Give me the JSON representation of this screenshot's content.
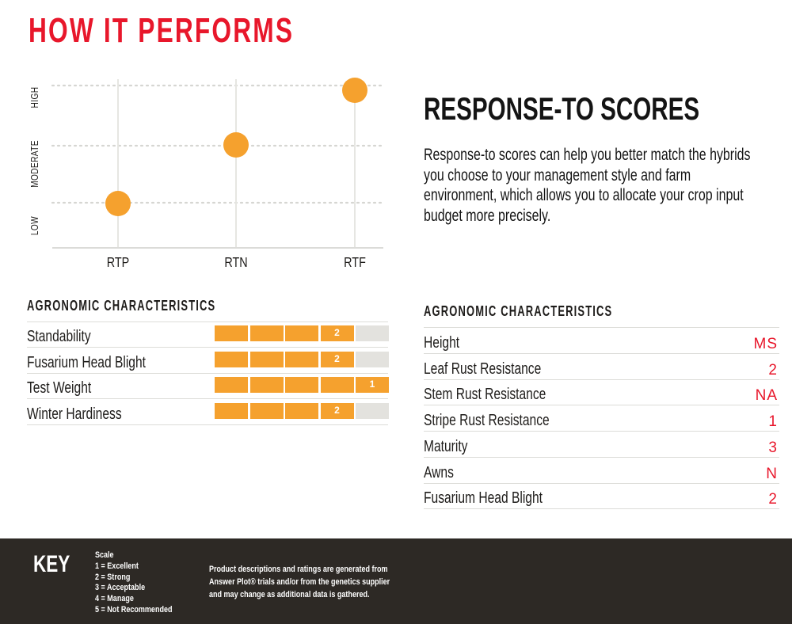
{
  "page_title": "HOW IT PERFORMS",
  "chart_data": {
    "type": "scatter",
    "categories": [
      "RTP",
      "RTN",
      "RTF"
    ],
    "y_levels": [
      "LOW",
      "MODERATE",
      "HIGH"
    ],
    "series": [
      {
        "values": [
          "LOW",
          "MODERATE",
          "HIGH"
        ]
      }
    ],
    "grid": true,
    "point_color": "#f5a12e"
  },
  "response": {
    "heading": "RESPONSE-TO SCORES",
    "body": "Response-to scores can help you better match the hybrids you choose to your management style and farm environment, which allows you to allocate your crop input budget more precisely."
  },
  "left_agronomic": {
    "title": "AGRONOMIC CHARACTERISTICS",
    "scale_max": 5,
    "rows": [
      {
        "label": "Standability",
        "rating": 2
      },
      {
        "label": "Fusarium Head Blight",
        "rating": 2
      },
      {
        "label": "Test Weight",
        "rating": 1
      },
      {
        "label": "Winter Hardiness",
        "rating": 2
      }
    ]
  },
  "right_agronomic": {
    "title": "AGRONOMIC CHARACTERISTICS",
    "rows": [
      {
        "label": "Height",
        "value": "MS"
      },
      {
        "label": "Leaf Rust Resistance",
        "value": "2"
      },
      {
        "label": "Stem Rust Resistance",
        "value": "NA"
      },
      {
        "label": "Stripe Rust Resistance",
        "value": "1"
      },
      {
        "label": "Maturity",
        "value": "3"
      },
      {
        "label": "Awns",
        "value": "N"
      },
      {
        "label": "Fusarium Head Blight",
        "value": "2"
      }
    ]
  },
  "key": {
    "title": "KEY",
    "scale_heading": "Scale",
    "scale_items": [
      "1 = Excellent",
      "2 = Strong",
      "3 = Acceptable",
      "4 = Manage",
      "5 = Not Recommended"
    ],
    "note": "Product descriptions and ratings are generated from Answer Plot® trials and/or from the genetics supplier and may change as additional data is gathered."
  },
  "colors": {
    "title_red": "#e8172b",
    "orange": "#f5a12e",
    "empty_bar": "#e3e2de",
    "footer_bg": "#2d2925",
    "value_red": "#e8172b"
  }
}
